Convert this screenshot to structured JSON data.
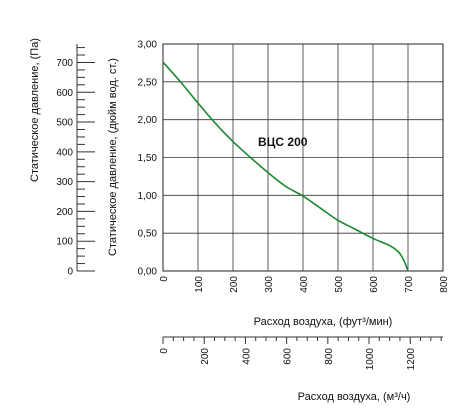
{
  "chart_data": {
    "type": "line",
    "series": [
      {
        "name": "ВЦС 200",
        "x": [
          0,
          50,
          100,
          150,
          200,
          250,
          300,
          350,
          400,
          450,
          500,
          550,
          600,
          650,
          675,
          690,
          700
        ],
        "values": [
          2.76,
          2.5,
          2.22,
          1.95,
          1.71,
          1.5,
          1.3,
          1.12,
          0.99,
          0.83,
          0.67,
          0.55,
          0.43,
          0.33,
          0.24,
          0.12,
          0.0
        ]
      }
    ],
    "xlabel": "Расход воздуха, (фут³/мин)",
    "xlim": [
      0,
      800
    ],
    "xticks": [
      "0",
      "100",
      "200",
      "300",
      "400",
      "500",
      "600",
      "700",
      "800"
    ],
    "ylabel": "Статическое давление, (дюйм вод. ст.)",
    "ylim": [
      0,
      3
    ],
    "yticks": [
      "0,00",
      "0,50",
      "1,00",
      "1,50",
      "2,00",
      "2,50",
      "3,00"
    ],
    "grid": true,
    "secondary_y": {
      "label": "Статическое давление, (Па)",
      "ticks": [
        "0",
        "100",
        "200",
        "300",
        "400",
        "500",
        "600",
        "700"
      ]
    },
    "secondary_x": {
      "label": "Расход воздуха, (м³/ч)",
      "ticks": [
        "0",
        "200",
        "400",
        "600",
        "800",
        "1000",
        "1200"
      ]
    },
    "annotation": "ВЦС 200",
    "line_color": "#1a8a2e"
  }
}
